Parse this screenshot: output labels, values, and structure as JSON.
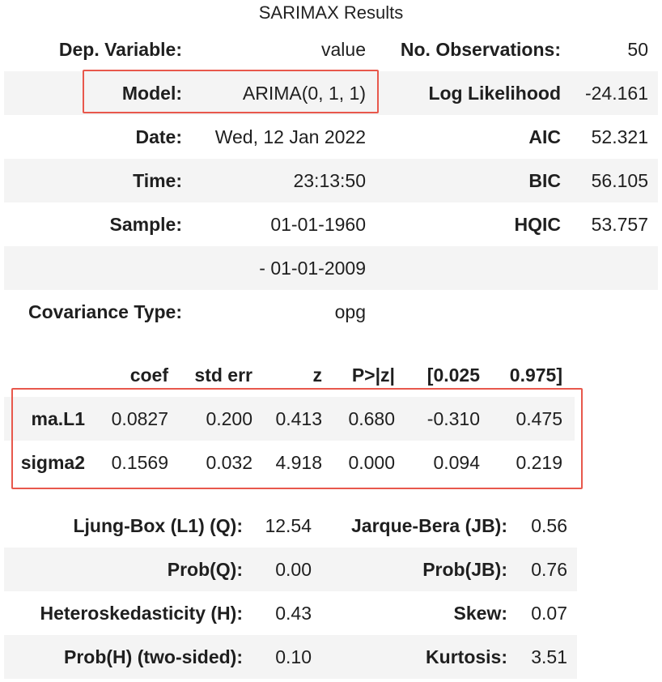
{
  "title": "SARIMAX Results",
  "summary": {
    "rows": [
      {
        "l1": "Dep. Variable:",
        "v1": "value",
        "l2": "No. Observations:",
        "v2": "50"
      },
      {
        "l1": "Model:",
        "v1": "ARIMA(0, 1, 1)",
        "l2": "Log Likelihood",
        "v2": "-24.161"
      },
      {
        "l1": "Date:",
        "v1": "Wed, 12 Jan 2022",
        "l2": "AIC",
        "v2": "52.321"
      },
      {
        "l1": "Time:",
        "v1": "23:13:50",
        "l2": "BIC",
        "v2": "56.105"
      },
      {
        "l1": "Sample:",
        "v1": "01-01-1960",
        "l2": "HQIC",
        "v2": "53.757"
      },
      {
        "l1": "",
        "v1": "- 01-01-2009",
        "l2": "",
        "v2": ""
      },
      {
        "l1": "Covariance Type:",
        "v1": "opg",
        "l2": "",
        "v2": ""
      }
    ]
  },
  "coef_table": {
    "headers": [
      "",
      "coef",
      "std err",
      "z",
      "P>|z|",
      "[0.025",
      "0.975]"
    ],
    "rows": [
      [
        "ma.L1",
        "0.0827",
        "0.200",
        "0.413",
        "0.680",
        "-0.310",
        "0.475"
      ],
      [
        "sigma2",
        "0.1569",
        "0.032",
        "4.918",
        "0.000",
        "0.094",
        "0.219"
      ]
    ]
  },
  "diagnostics": {
    "rows": [
      {
        "l1": "Ljung-Box (L1) (Q):",
        "v1": "12.54",
        "l2": "Jarque-Bera (JB):",
        "v2": "0.56"
      },
      {
        "l1": "Prob(Q):",
        "v1": "0.00",
        "l2": "Prob(JB):",
        "v2": "0.76"
      },
      {
        "l1": "Heteroskedasticity (H):",
        "v1": "0.43",
        "l2": "Skew:",
        "v2": "0.07"
      },
      {
        "l1": "Prob(H) (two-sided):",
        "v1": "0.10",
        "l2": "Kurtosis:",
        "v2": "3.51"
      }
    ]
  },
  "highlight_color": "#e8584c",
  "row_shade_color": "#f4f4f4"
}
